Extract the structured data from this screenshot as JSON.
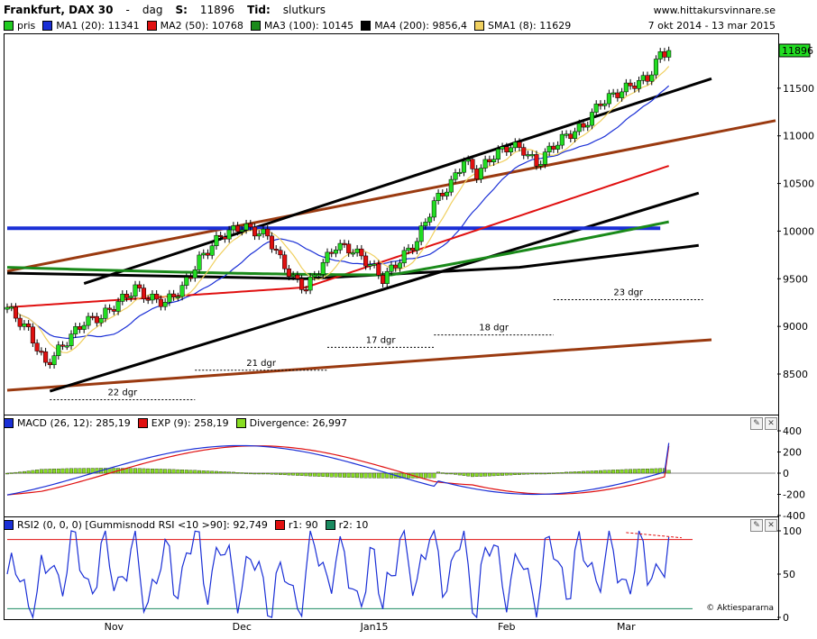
{
  "header": {
    "title": "Frankfurt, DAX 30",
    "interval_sep": "-",
    "interval": "dag",
    "s_label": "S:",
    "s_value": "11896",
    "tid_label": "Tid:",
    "tid_value": "slutkurs",
    "site": "www.hittakursvinnare.se",
    "date_range": "7 okt 2014 - 13 mar 2015"
  },
  "legend_main": [
    {
      "label": "pris",
      "color": "#22cc22"
    },
    {
      "label": "MA1 (20): 11341",
      "color": "#1a2fd6"
    },
    {
      "label": "MA2 (50): 10768",
      "color": "#e01010"
    },
    {
      "label": "MA3 (100): 10145",
      "color": "#1a8a1a"
    },
    {
      "label": "MA4 (200): 9856,4",
      "color": "#000000"
    },
    {
      "label": "SMA1 (8): 11629",
      "color": "#f0d060"
    }
  ],
  "legend_macd": [
    {
      "label": "MACD (26, 12): 285,19",
      "color": "#1a2fd6"
    },
    {
      "label": "EXP (9): 258,19",
      "color": "#e01010"
    },
    {
      "label": "Divergence: 26,997",
      "color": "#88dd22"
    }
  ],
  "legend_rsi": [
    {
      "label": "RSI2 (0, 0, 0) [Gummisnodd RSI <10 >90]: 92,749",
      "color": "#1a2fd6"
    },
    {
      "label": "r1: 90",
      "color": "#e01010"
    },
    {
      "label": "r2: 10",
      "color": "#1a8a60"
    }
  ],
  "attribution": "© Aktiespararna",
  "chart_data": [
    {
      "type": "line",
      "price_tag": "11896",
      "ytick_labels": [
        "11500",
        "11000",
        "10500",
        "10000",
        "9500",
        "9000",
        "8500"
      ],
      "ytick_values": [
        11500,
        11000,
        10500,
        10000,
        9500,
        9000,
        8500
      ],
      "ylim": [
        8150,
        12000
      ],
      "x_month_labels": [
        "Nov",
        "Dec",
        "Jan15",
        "Feb",
        "Mar"
      ],
      "x_month_days": [
        25,
        55,
        86,
        117,
        145
      ],
      "xlim": [
        0,
        180
      ],
      "ma_values_last": {
        "MA1 (20)": 11341,
        "MA2 (50)": 10768,
        "MA3 (100)": 10145,
        "MA4 (200)": 9856.4,
        "SMA1 (8)": 11629
      },
      "close_last": 11896,
      "span_annotations": [
        {
          "label": "22 dgr",
          "from": 10,
          "to": 44,
          "y": 8230
        },
        {
          "label": "21 dgr",
          "from": 44,
          "to": 75,
          "y": 8540
        },
        {
          "label": "17 dgr",
          "from": 75,
          "to": 100,
          "y": 8780
        },
        {
          "label": "18 dgr",
          "from": 100,
          "to": 128,
          "y": 8910
        },
        {
          "label": "23 dgr",
          "from": 128,
          "to": 163,
          "y": 9280
        }
      ]
    },
    {
      "type": "line",
      "series": [
        {
          "name": "MACD (26, 12)",
          "last": 285.19
        },
        {
          "name": "EXP (9)",
          "last": 258.19
        },
        {
          "name": "Divergence",
          "last": 26.997
        }
      ],
      "ytick_labels": [
        "400",
        "200",
        "0",
        "-200",
        "-400"
      ],
      "ytick_values": [
        400,
        200,
        0,
        -200,
        -400
      ]
    },
    {
      "type": "line",
      "series": [
        {
          "name": "RSI2 (0, 0, 0) [Gummisnodd RSI <10 >90]",
          "last": 92.749
        }
      ],
      "levels": [
        {
          "name": "r1",
          "value": 90
        },
        {
          "name": "r2",
          "value": 10
        }
      ],
      "ytick_labels": [
        "100",
        "50",
        "0"
      ],
      "ytick_values": [
        100,
        50,
        0
      ]
    }
  ]
}
